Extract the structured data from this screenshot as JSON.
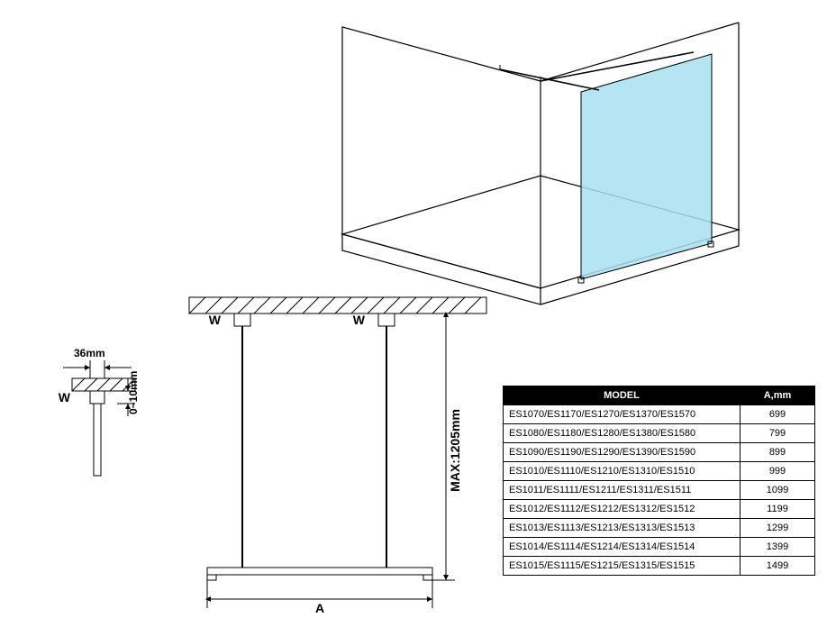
{
  "isometric": {
    "line_color": "#000000",
    "line_width": 1.2,
    "glass_fill": "#a8dff0",
    "glass_opacity": 0.85
  },
  "schematic": {
    "line_color": "#000000",
    "line_width": 1.2,
    "hatch_gap": 8,
    "font": "Arial",
    "label_font_size": 14,
    "small_font_size": 12,
    "labels": {
      "W": "W",
      "A": "A",
      "height": "MAX:1205mm",
      "clearance_w": "36mm",
      "clearance_h": "0~10mm"
    }
  },
  "table": {
    "header_bg": "#000000",
    "header_fg": "#ffffff",
    "border_color": "#000000",
    "font_size": 11,
    "columns": [
      "MODEL",
      "A,mm"
    ],
    "rows": [
      [
        "ES1070/ES1170/ES1270/ES1370/ES1570",
        "699"
      ],
      [
        "ES1080/ES1180/ES1280/ES1380/ES1580",
        "799"
      ],
      [
        "ES1090/ES1190/ES1290/ES1390/ES1590",
        "899"
      ],
      [
        "ES1010/ES1110/ES1210/ES1310/ES1510",
        "999"
      ],
      [
        "ES1011/ES1111/ES1211/ES1311/ES1511",
        "1099"
      ],
      [
        "ES1012/ES1112/ES1212/ES1312/ES1512",
        "1199"
      ],
      [
        "ES1013/ES1113/ES1213/ES1313/ES1513",
        "1299"
      ],
      [
        "ES1014/ES1114/ES1214/ES1314/ES1514",
        "1399"
      ],
      [
        "ES1015/ES1115/ES1215/ES1315/ES1515",
        "1499"
      ]
    ]
  }
}
